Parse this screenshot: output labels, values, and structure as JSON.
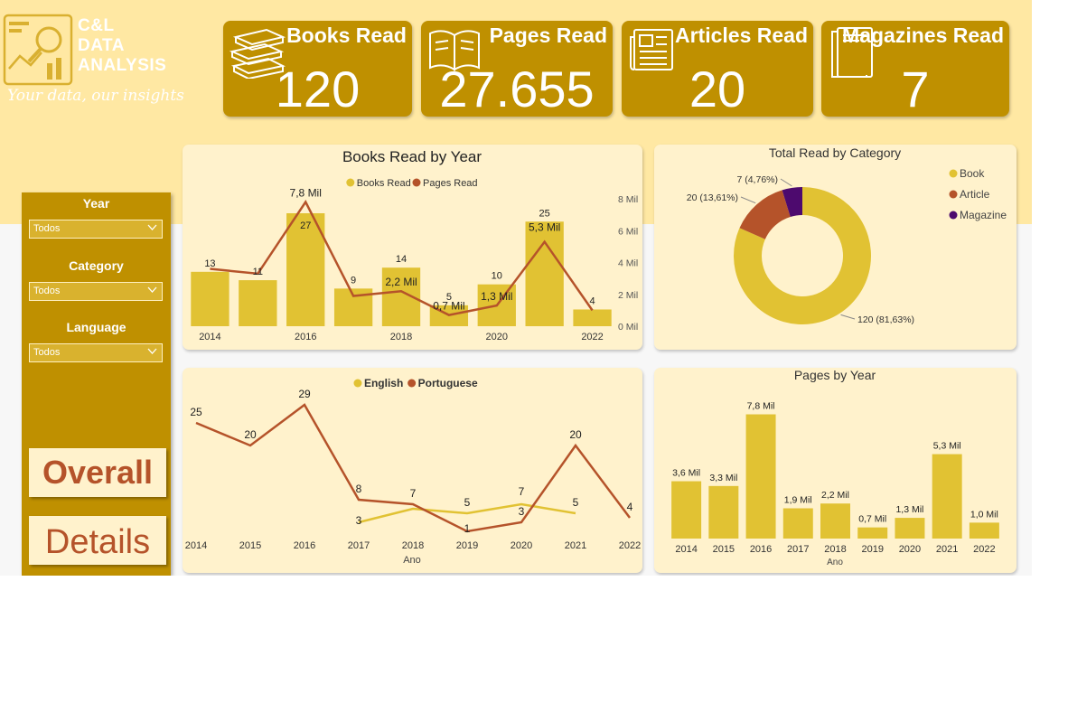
{
  "logo": {
    "title": "C&L\nDATA\nANALYSIS",
    "tagline": "Your data, our insights"
  },
  "kpis": [
    {
      "title": "Books Read",
      "value": "120",
      "icon": "books-icon"
    },
    {
      "title": "Pages Read",
      "value": "27.655",
      "icon": "open-book-icon"
    },
    {
      "title": "Articles Read",
      "value": "20",
      "icon": "newspaper-icon"
    },
    {
      "title": "Magazines Read",
      "value": "7",
      "icon": "magazine-icon"
    }
  ],
  "filters": [
    {
      "label": "Year",
      "value": "Todos"
    },
    {
      "label": "Category",
      "value": "Todos"
    },
    {
      "label": "Language",
      "value": "Todos"
    }
  ],
  "nav": {
    "overall": "Overall",
    "details": "Details"
  },
  "colors": {
    "gold": "#bf9000",
    "bar": "#e1c233",
    "rust": "#b5532a",
    "purple": "#4d0a6e",
    "cream": "#fff2cc",
    "band": "#ffe8a3"
  },
  "chart_data": [
    {
      "id": "books-by-year",
      "type": "bar+line",
      "title": "Books Read by Year",
      "legend": [
        "Books Read",
        "Pages Read"
      ],
      "categories": [
        "2014",
        "2015",
        "2016",
        "2017",
        "2018",
        "2019",
        "2020",
        "2021",
        "2022"
      ],
      "x_tick_labels": [
        "2014",
        "2016",
        "2018",
        "2020",
        "2022"
      ],
      "series": [
        {
          "name": "Books Read",
          "kind": "bar",
          "values": [
            13,
            11,
            27,
            9,
            14,
            5,
            10,
            25,
            4
          ],
          "labels": [
            "13",
            "11",
            "27",
            "9",
            "14",
            "5",
            "10",
            "25",
            "4"
          ]
        },
        {
          "name": "Pages Read",
          "kind": "line",
          "axis": "right",
          "values": [
            3.6,
            3.3,
            7.8,
            1.9,
            2.2,
            0.7,
            1.3,
            5.3,
            1.0
          ],
          "labels": [
            "",
            "",
            "7,8 Mil",
            "",
            "2,2 Mil",
            "0,7 Mil",
            "1,3 Mil",
            "5,3 Mil",
            ""
          ]
        }
      ],
      "ylim": [
        0,
        27
      ],
      "y2lim": [
        0,
        8
      ],
      "y2_ticks": [
        "0 Mil",
        "2 Mil",
        "4 Mil",
        "6 Mil",
        "8 Mil"
      ]
    },
    {
      "id": "total-by-category",
      "type": "pie",
      "title": "Total Read by Category",
      "legend": [
        "Book",
        "Article",
        "Magazine"
      ],
      "slices": [
        {
          "name": "Book",
          "value": 120,
          "label": "120 (81,63%)"
        },
        {
          "name": "Article",
          "value": 20,
          "label": "20 (13,61%)"
        },
        {
          "name": "Magazine",
          "value": 7,
          "label": "7 (4,76%)"
        }
      ]
    },
    {
      "id": "language-by-year",
      "type": "line",
      "legend": [
        "English",
        "Portuguese"
      ],
      "xlabel": "Ano",
      "categories": [
        "2014",
        "2015",
        "2016",
        "2017",
        "2018",
        "2019",
        "2020",
        "2021",
        "2022"
      ],
      "series": [
        {
          "name": "English",
          "values": [
            null,
            null,
            null,
            3,
            6,
            5,
            7,
            5,
            null
          ],
          "labels": [
            "",
            "",
            "",
            "3",
            "",
            "5",
            "7",
            "5",
            ""
          ]
        },
        {
          "name": "Portuguese",
          "values": [
            25,
            20,
            29,
            8,
            7,
            1,
            3,
            20,
            4
          ],
          "labels": [
            "25",
            "20",
            "29",
            "8",
            "7",
            "1",
            "3",
            "20",
            "4"
          ]
        }
      ],
      "ylim": [
        0,
        30
      ]
    },
    {
      "id": "pages-by-year",
      "type": "bar",
      "title": "Pages by Year",
      "xlabel": "Ano",
      "categories": [
        "2014",
        "2015",
        "2016",
        "2017",
        "2018",
        "2019",
        "2020",
        "2021",
        "2022"
      ],
      "values": [
        3.6,
        3.3,
        7.8,
        1.9,
        2.2,
        0.7,
        1.3,
        5.3,
        1.0
      ],
      "labels": [
        "3,6 Mil",
        "3,3 Mil",
        "7,8 Mil",
        "1,9 Mil",
        "2,2 Mil",
        "0,7 Mil",
        "1,3 Mil",
        "5,3 Mil",
        "1,0 Mil"
      ],
      "ylim": [
        0,
        8
      ]
    }
  ]
}
